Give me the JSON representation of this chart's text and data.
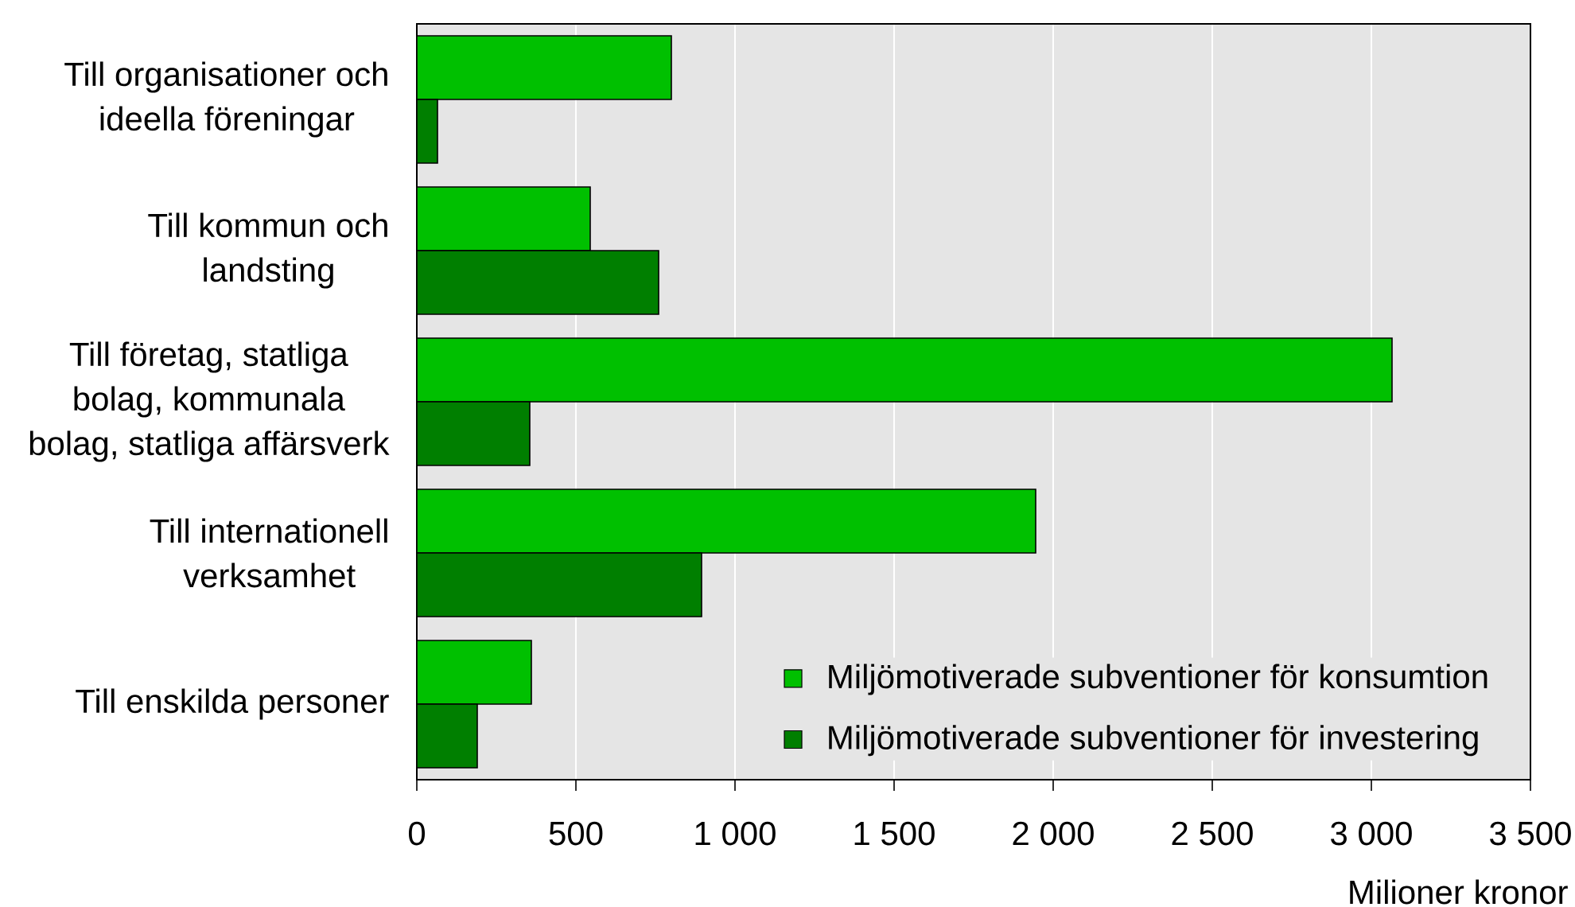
{
  "chart_data": {
    "type": "bar",
    "orientation": "horizontal",
    "categories": [
      "Till organisationer och ideella föreningar",
      "Till kommun och landsting",
      "Till företag, statliga bolag, kommunala bolag, statliga affärsverk",
      "Till internationell verksamhet",
      "Till enskilda personer"
    ],
    "series": [
      {
        "name": "Miljömotiverade subventioner för konsumtion",
        "color": "#00c000",
        "values": [
          800,
          545,
          3065,
          1945,
          360
        ]
      },
      {
        "name": "Miljömotiverade subventioner för investering",
        "color": "#007f00",
        "values": [
          65,
          760,
          355,
          895,
          190
        ]
      }
    ],
    "xlabel": "Milioner kronor",
    "xlim": [
      0,
      3500
    ],
    "xticks": [
      0,
      500,
      {
        "value": 1000,
        "label": "1 000"
      },
      {
        "value": 1500,
        "label": "1 500"
      },
      {
        "value": 2000,
        "label": "2 000"
      },
      {
        "value": 2500,
        "label": "2 500"
      },
      {
        "value": 3000,
        "label": "3 000"
      },
      {
        "value": 3500,
        "label": "3 500"
      }
    ],
    "grid": "x",
    "legend": "bottom right"
  }
}
